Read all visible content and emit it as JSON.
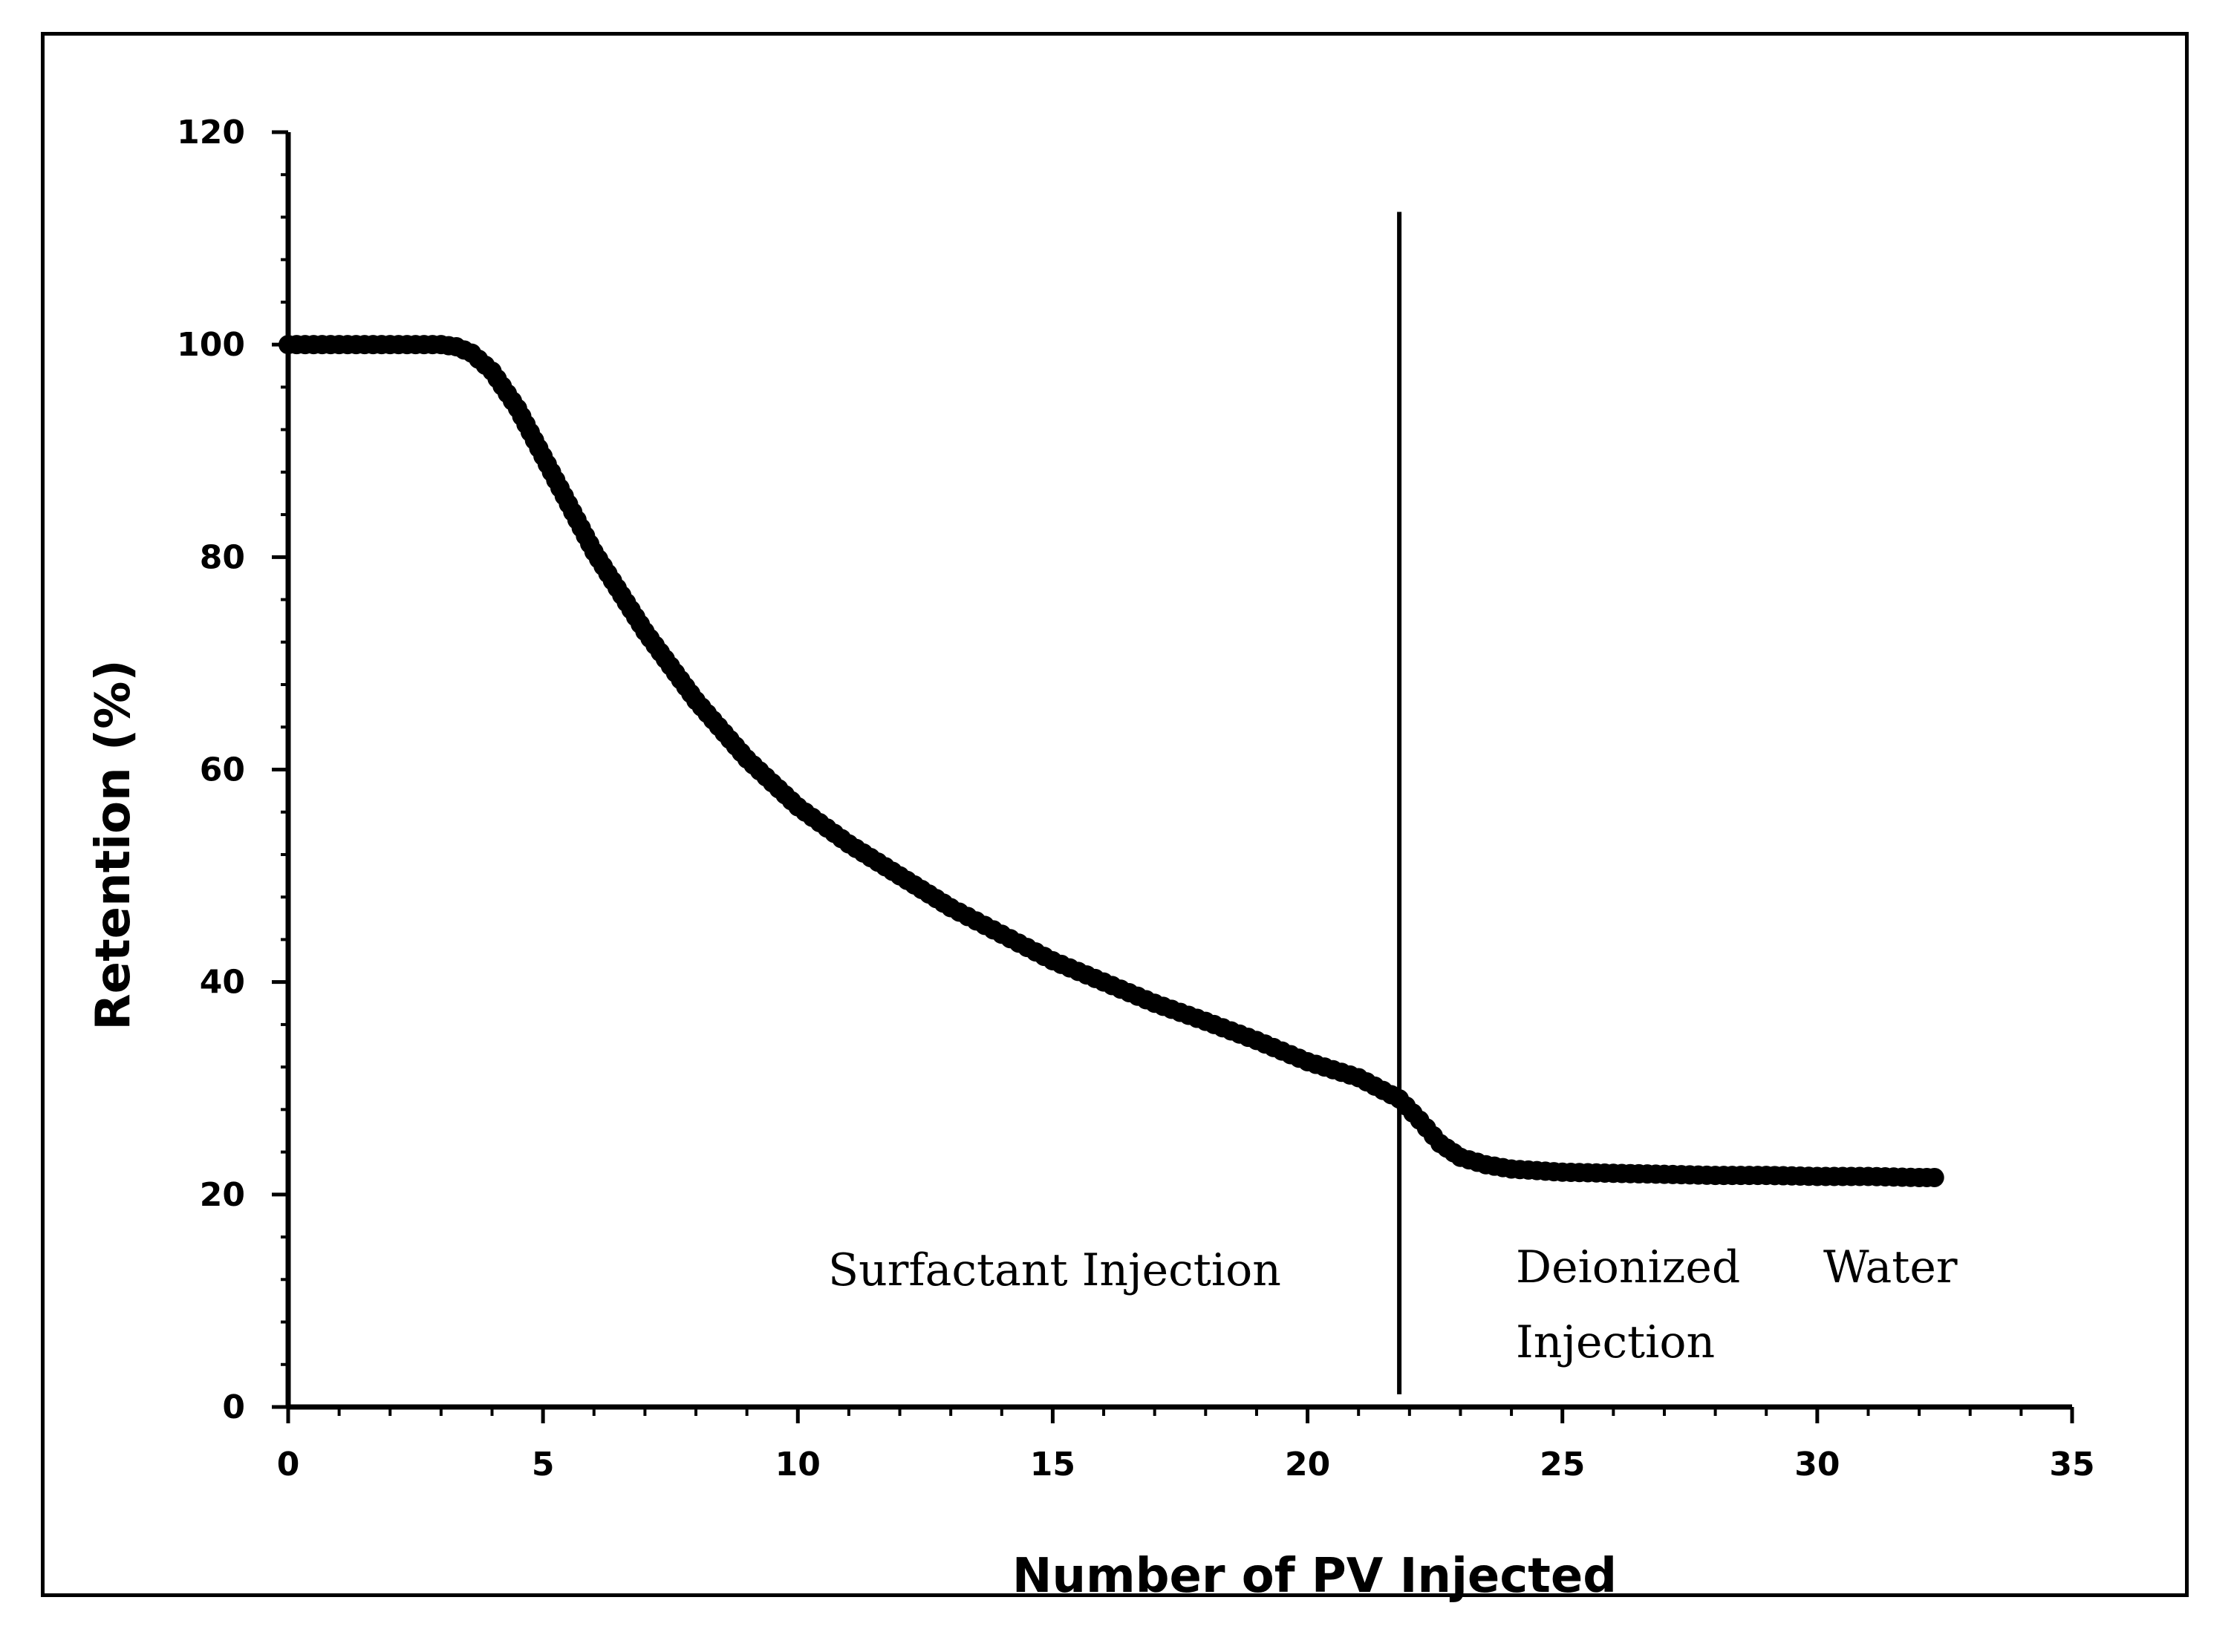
{
  "chart_data": {
    "type": "scatter",
    "title": "",
    "xlabel": "Number of PV Injected",
    "ylabel": "Retention (%)",
    "xlim": [
      0,
      35
    ],
    "ylim": [
      0,
      120
    ],
    "xticks": [
      0,
      5,
      10,
      15,
      20,
      25,
      30,
      35
    ],
    "yticks": [
      0,
      20,
      40,
      60,
      80,
      100,
      120
    ],
    "xtick_labels": [
      "0",
      "5",
      "10",
      "15",
      "20",
      "25",
      "30",
      "35"
    ],
    "ytick_labels": [
      "0",
      "20",
      "40",
      "60",
      "80",
      "100",
      "120"
    ],
    "grid": false,
    "marker_color": "#000000",
    "series": [
      {
        "name": "Retention",
        "x": [
          0,
          1,
          2,
          3,
          3.3,
          3.6,
          4,
          4.5,
          5,
          5.5,
          6,
          7,
          8,
          9,
          10,
          11,
          12,
          13,
          14,
          15,
          16,
          17,
          18,
          19,
          20,
          21,
          21.8,
          22.2,
          22.6,
          23,
          23.5,
          24,
          25,
          26,
          27,
          28,
          29,
          30,
          31,
          32,
          32.3
        ],
        "y": [
          100,
          100,
          100,
          100,
          99.8,
          99.2,
          97.5,
          94,
          89.5,
          85,
          80.5,
          73,
          66.5,
          61,
          56.5,
          53,
          50,
          47,
          44.5,
          42,
          40,
          38,
          36.3,
          34.5,
          32.5,
          31,
          29,
          27,
          24.8,
          23.5,
          22.8,
          22.4,
          22.1,
          22,
          21.9,
          21.8,
          21.8,
          21.7,
          21.7,
          21.6,
          21.6
        ]
      }
    ],
    "vertical_line": {
      "x": 21.8,
      "y_top": 112.5,
      "y_bottom": 1.2
    },
    "annotations": [
      {
        "id": "surfactant",
        "text": "Surfactant Injection"
      },
      {
        "id": "deionized",
        "text": "Deionized"
      },
      {
        "id": "water",
        "text": "Water"
      },
      {
        "id": "injection",
        "text": "Injection"
      }
    ]
  }
}
